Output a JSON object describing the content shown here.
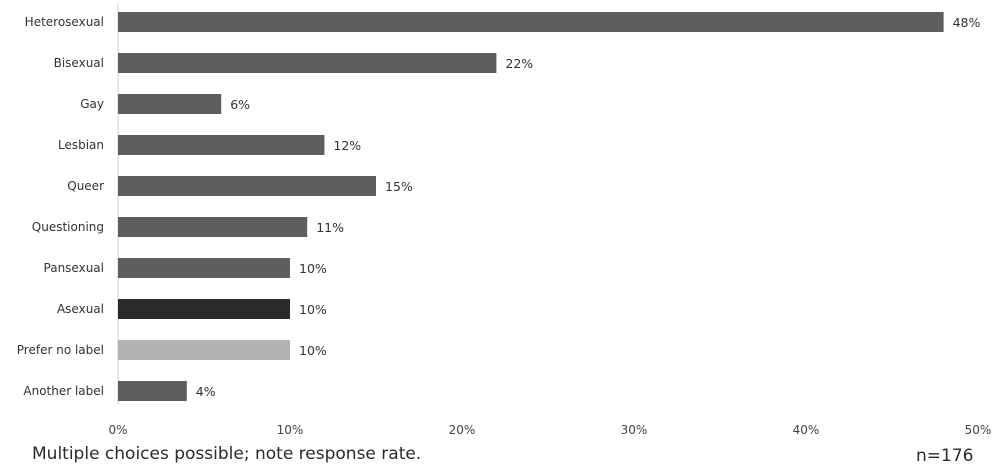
{
  "chart_data": {
    "type": "bar",
    "orientation": "horizontal",
    "categories": [
      "Heterosexual",
      "Bisexual",
      "Gay",
      "Lesbian",
      "Queer",
      "Questioning",
      "Pansexual",
      "Asexual",
      "Prefer no label",
      "Another label"
    ],
    "values": [
      48,
      22,
      6,
      12,
      15,
      11,
      10,
      10,
      10,
      4
    ],
    "data_labels": [
      "48%",
      "22%",
      "6%",
      "12%",
      "15%",
      "11%",
      "10%",
      "10%",
      "10%",
      "4%"
    ],
    "bar_colors": [
      "#5e5e5e",
      "#5e5e5e",
      "#5e5e5e",
      "#5e5e5e",
      "#5e5e5e",
      "#5e5e5e",
      "#5e5e5e",
      "#2a2a2a",
      "#b3b3b3",
      "#5e5e5e"
    ],
    "x_ticks": [
      0,
      10,
      20,
      30,
      40,
      50
    ],
    "x_tick_labels": [
      "0%",
      "10%",
      "20%",
      "30%",
      "40%",
      "50%"
    ],
    "xlim": [
      0,
      50
    ],
    "grid": false,
    "legend": "none"
  },
  "footnote": {
    "left": "Multiple choices possible; note response rate.",
    "right": "n=176"
  }
}
